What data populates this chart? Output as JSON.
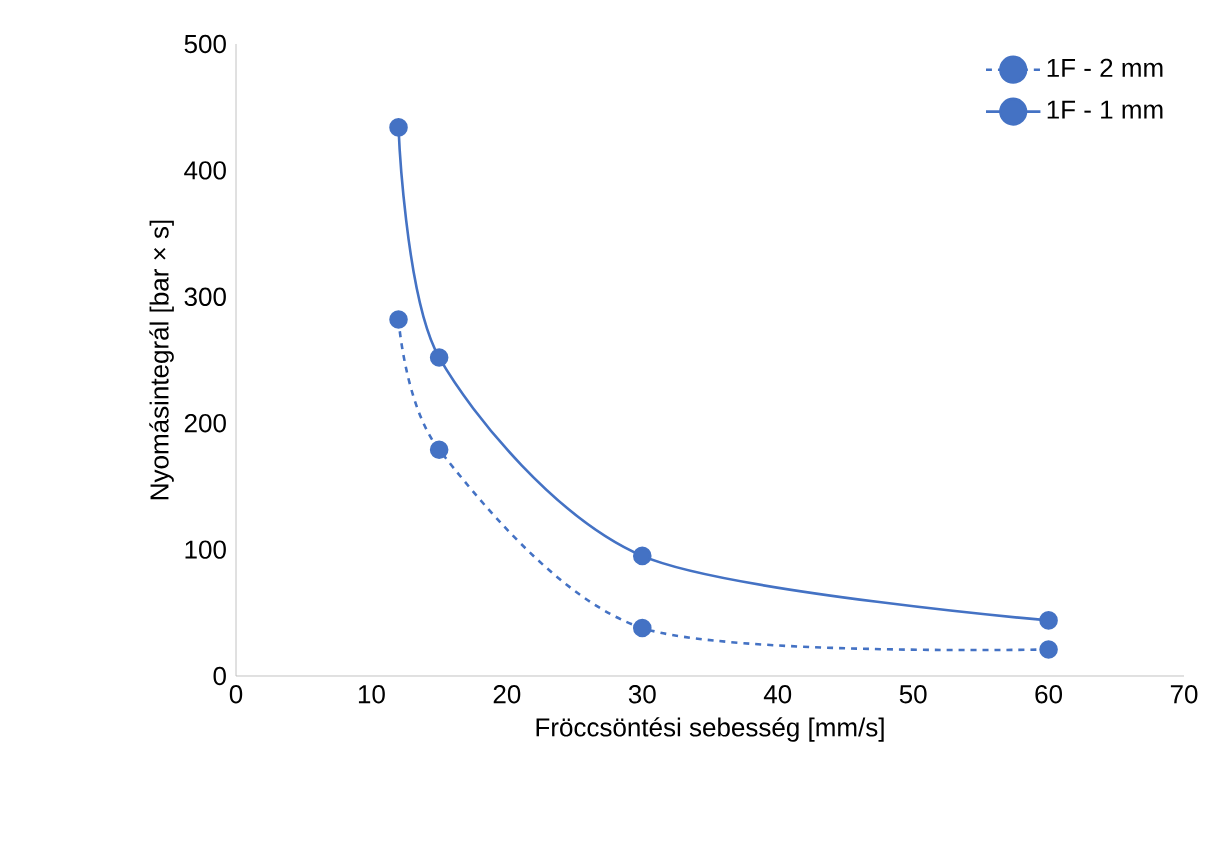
{
  "chart_data": {
    "type": "line",
    "xlabel": "Fröccsöntési sebesség [mm/s]",
    "ylabel": "Nyomásintegrál [bar × s]",
    "x": [
      12,
      15,
      30,
      60
    ],
    "series": [
      {
        "name": "1F - 2 mm",
        "color": "#4472c4",
        "line_style": "dashed",
        "values": [
          282,
          179,
          38,
          21
        ]
      },
      {
        "name": "1F - 1 mm",
        "color": "#4472c4",
        "line_style": "solid",
        "values": [
          434,
          252,
          95,
          44
        ]
      }
    ],
    "xlim": [
      0,
      70
    ],
    "xticks": [
      0,
      10,
      20,
      30,
      40,
      50,
      60,
      70
    ],
    "ylim": [
      0,
      500
    ],
    "yticks": [
      0,
      100,
      200,
      300,
      400,
      500
    ],
    "marker": "circle",
    "legend": "top right",
    "grid": false
  }
}
